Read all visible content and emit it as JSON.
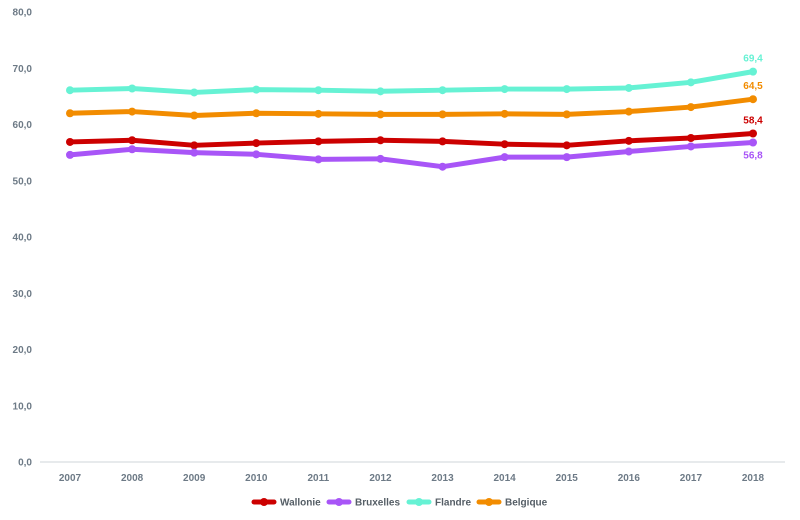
{
  "chart_data": {
    "type": "line",
    "x": [
      "2007",
      "2008",
      "2009",
      "2010",
      "2011",
      "2012",
      "2013",
      "2014",
      "2015",
      "2016",
      "2017",
      "2018"
    ],
    "series": [
      {
        "name": "Wallonie",
        "color": "#cc0000",
        "values": [
          56.9,
          57.2,
          56.3,
          56.7,
          57.0,
          57.2,
          57.0,
          56.5,
          56.3,
          57.1,
          57.6,
          58.4
        ],
        "end_label": "58,4"
      },
      {
        "name": "Bruxelles",
        "color": "#a855f7",
        "values": [
          54.6,
          55.6,
          55.0,
          54.7,
          53.8,
          53.9,
          52.5,
          54.2,
          54.2,
          55.2,
          56.1,
          56.8
        ],
        "end_label": "56,8"
      },
      {
        "name": "Flandre",
        "color": "#66f2d4",
        "values": [
          66.1,
          66.4,
          65.7,
          66.2,
          66.1,
          65.9,
          66.1,
          66.3,
          66.3,
          66.5,
          67.5,
          69.4
        ],
        "end_label": "69,4"
      },
      {
        "name": "Belgique",
        "color": "#f28c00",
        "values": [
          62.0,
          62.3,
          61.6,
          62.0,
          61.9,
          61.8,
          61.8,
          61.9,
          61.8,
          62.3,
          63.1,
          64.5
        ],
        "end_label": "64,5"
      }
    ],
    "y_ticks": [
      "0,0",
      "10,0",
      "20,0",
      "30,0",
      "40,0",
      "50,0",
      "60,0",
      "70,0",
      "80,0"
    ],
    "ylim": [
      0,
      80
    ],
    "grid": false,
    "legend_position": "bottom-center"
  }
}
